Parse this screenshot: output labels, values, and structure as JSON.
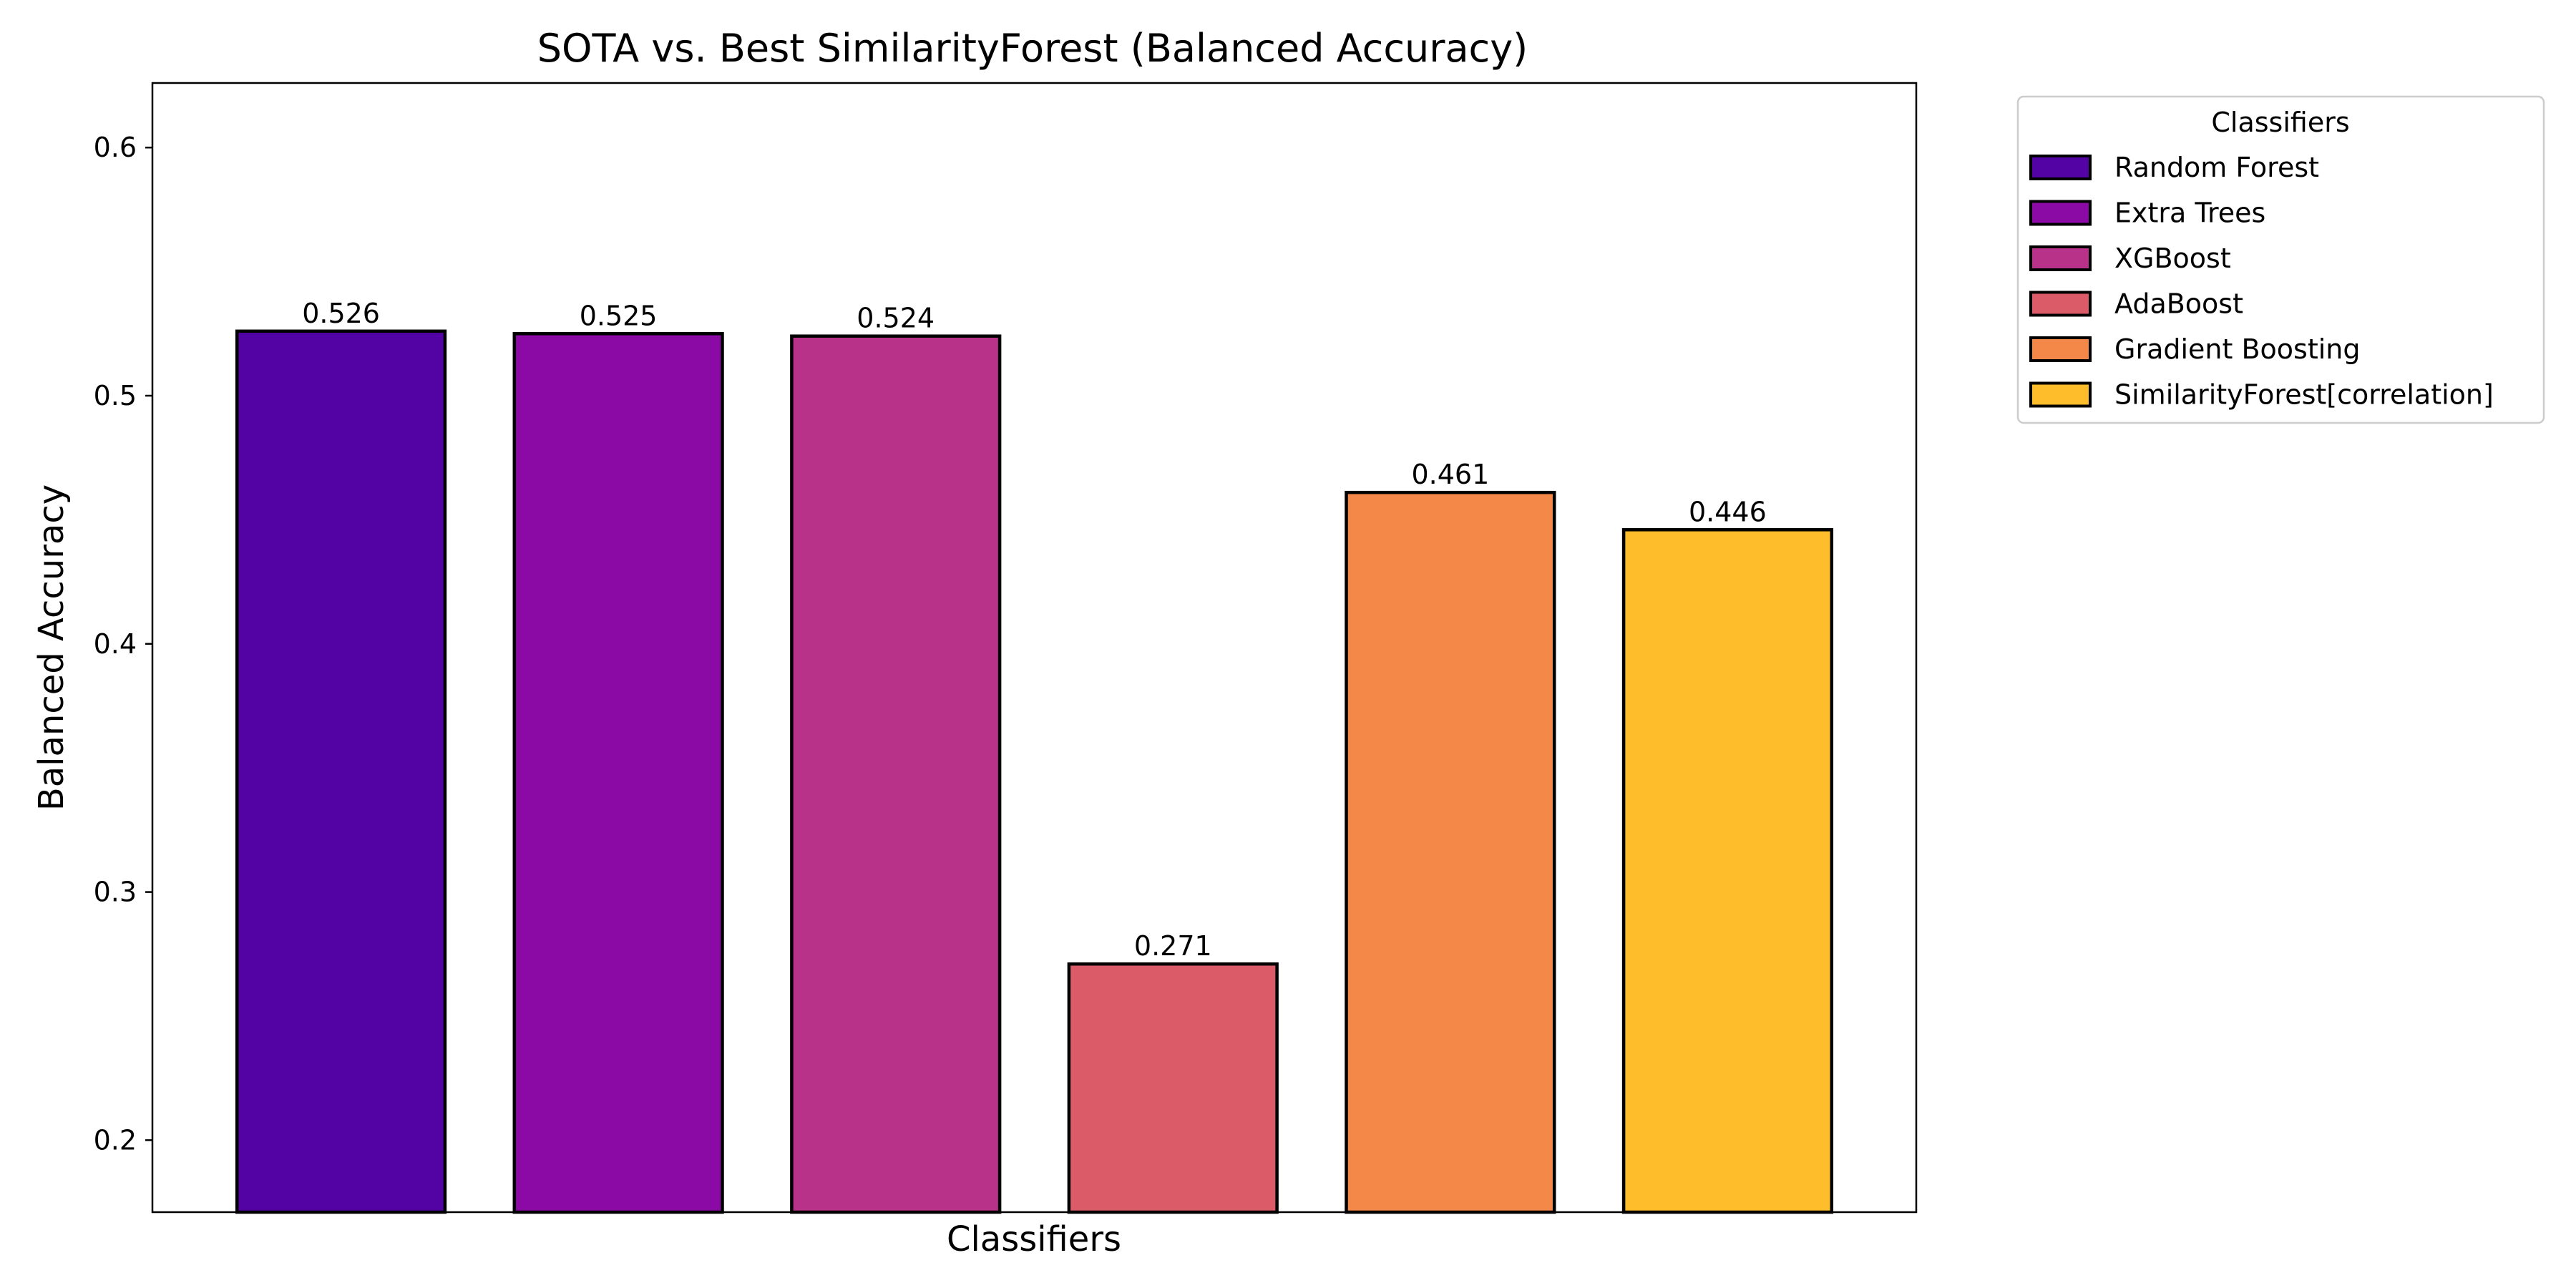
{
  "chart_data": {
    "type": "bar",
    "title": "SOTA vs. Best SimilarityForest (Balanced Accuracy)",
    "xlabel": "Classifiers",
    "ylabel": "Balanced Accuracy",
    "ylim": [
      0.171,
      0.626
    ],
    "yticks": [
      0.2,
      0.3,
      0.4,
      0.5,
      0.6
    ],
    "ytick_labels": [
      "0.2",
      "0.3",
      "0.4",
      "0.5",
      "0.6"
    ],
    "categories": [
      "Random Forest",
      "Extra Trees",
      "XGBoost",
      "AdaBoost",
      "Gradient Boosting",
      "SimilarityForest[correlation]"
    ],
    "values": [
      0.526,
      0.525,
      0.524,
      0.271,
      0.461,
      0.446
    ],
    "data_labels": [
      "0.526",
      "0.525",
      "0.524",
      "0.271",
      "0.461",
      "0.446"
    ],
    "colors": [
      "#5302a3",
      "#8b0aa5",
      "#b83289",
      "#db5c68",
      "#f48849",
      "#febd2a"
    ],
    "edge_color": "#000000",
    "grid": false,
    "xticks_shown": false,
    "legend": {
      "title": "Classifiers",
      "placement": "outside-upper-right",
      "entries": [
        "Random Forest",
        "Extra Trees",
        "XGBoost",
        "AdaBoost",
        "Gradient Boosting",
        "SimilarityForest[correlation]"
      ]
    }
  }
}
